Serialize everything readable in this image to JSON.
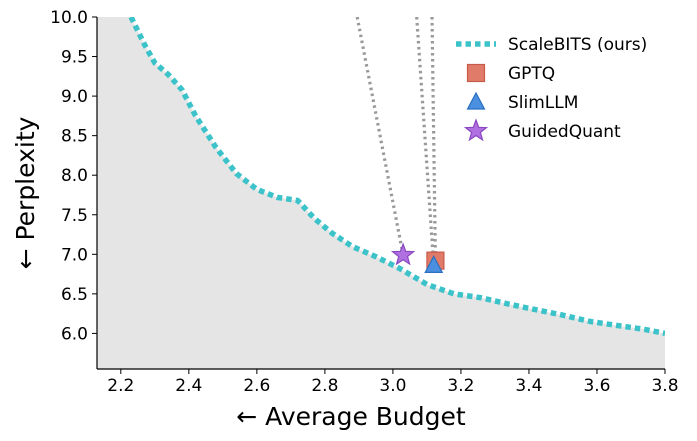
{
  "chart_data": {
    "type": "line",
    "title": "",
    "xlabel": "← Average Budget",
    "ylabel": "← Perplexity",
    "xlim": [
      2.13,
      3.8
    ],
    "ylim": [
      5.55,
      10.0
    ],
    "x_ticks": [
      "2.2",
      "2.4",
      "2.6",
      "2.8",
      "3.0",
      "3.2",
      "3.4",
      "3.6",
      "3.8"
    ],
    "y_ticks": [
      "6.0",
      "6.5",
      "7.0",
      "7.5",
      "8.0",
      "8.5",
      "9.0",
      "9.5",
      "10.0"
    ],
    "grid": false,
    "legend_position": "top-right",
    "colors": {
      "scalebits": "#3cc3c9",
      "gptq": "#e07b6a",
      "slimllm": "#4a8fe0",
      "guidedquant": "#b070e0",
      "trend": "#999999",
      "fill": "#e5e5e5"
    },
    "series": [
      {
        "name": "ScaleBITS (ours)",
        "kind": "frontier",
        "x": [
          2.23,
          2.27,
          2.3,
          2.34,
          2.38,
          2.42,
          2.48,
          2.54,
          2.6,
          2.66,
          2.72,
          2.77,
          2.82,
          2.88,
          2.95,
          3.02,
          3.1,
          3.18,
          3.26,
          3.34,
          3.42,
          3.5,
          3.58,
          3.66,
          3.74,
          3.8
        ],
        "y": [
          10.0,
          9.65,
          9.42,
          9.27,
          9.08,
          8.75,
          8.35,
          8.02,
          7.82,
          7.72,
          7.68,
          7.45,
          7.27,
          7.1,
          6.97,
          6.82,
          6.62,
          6.5,
          6.45,
          6.37,
          6.3,
          6.23,
          6.15,
          6.1,
          6.05,
          6.0
        ]
      },
      {
        "name": "GPTQ",
        "marker": "square",
        "x": [
          3.125
        ],
        "y": [
          6.92
        ]
      },
      {
        "name": "SlimLLM",
        "marker": "triangle",
        "x": [
          3.12
        ],
        "y": [
          6.86
        ]
      },
      {
        "name": "GuidedQuant",
        "marker": "star",
        "x": [
          3.03
        ],
        "y": [
          6.99
        ]
      }
    ],
    "trend_lines": [
      {
        "x": [
          2.895,
          3.03
        ],
        "y": [
          10.0,
          6.99
        ]
      },
      {
        "x": [
          3.07,
          3.12
        ],
        "y": [
          10.0,
          6.86
        ]
      },
      {
        "x": [
          3.115,
          3.125
        ],
        "y": [
          10.0,
          6.92
        ]
      }
    ]
  }
}
